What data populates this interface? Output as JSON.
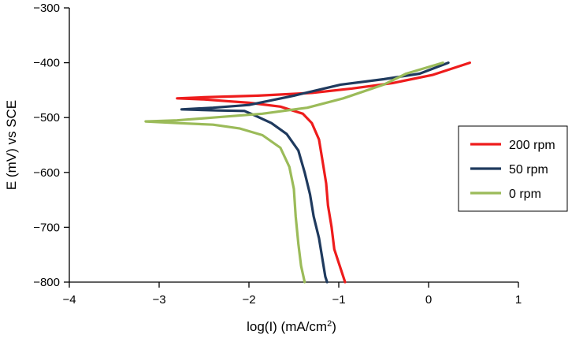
{
  "chart_data": {
    "type": "line",
    "title": "",
    "xlabel": "log(I) (mA/cm",
    "xlabel_sup": "2",
    "xlabel_suffix": ")",
    "ylabel": "E (mV) vs SCE",
    "xlim": [
      -4,
      1
    ],
    "ylim": [
      -800,
      -300
    ],
    "x_ticks": [
      -4,
      -3,
      -2,
      -1,
      0,
      1
    ],
    "x_tick_labels": [
      "−4",
      "−3",
      "−2",
      "−1",
      "0",
      "1"
    ],
    "y_ticks": [
      -800,
      -700,
      -600,
      -500,
      -400,
      -300
    ],
    "y_tick_labels": [
      "−800",
      "−700",
      "−600",
      "−500",
      "−400",
      "−300"
    ],
    "grid": false,
    "legend_position": "right",
    "series": [
      {
        "name": "200 rpm",
        "color": "#ee1c1c",
        "points": [
          [
            0.46,
            -400
          ],
          [
            0.05,
            -422
          ],
          [
            -0.4,
            -437
          ],
          [
            -0.85,
            -447
          ],
          [
            -1.3,
            -455
          ],
          [
            -1.9,
            -460
          ],
          [
            -2.5,
            -463
          ],
          [
            -2.8,
            -465
          ],
          [
            -2.5,
            -467
          ],
          [
            -2.0,
            -473
          ],
          [
            -1.65,
            -480
          ],
          [
            -1.4,
            -493
          ],
          [
            -1.3,
            -510
          ],
          [
            -1.22,
            -540
          ],
          [
            -1.18,
            -580
          ],
          [
            -1.14,
            -620
          ],
          [
            -1.12,
            -660
          ],
          [
            -1.08,
            -700
          ],
          [
            -1.05,
            -740
          ],
          [
            -0.98,
            -775
          ],
          [
            -0.93,
            -800
          ]
        ]
      },
      {
        "name": "50 rpm",
        "color": "#1f3a5e",
        "points": [
          [
            0.22,
            -400
          ],
          [
            -0.1,
            -420
          ],
          [
            -0.5,
            -430
          ],
          [
            -0.98,
            -440
          ],
          [
            -1.5,
            -460
          ],
          [
            -2.0,
            -477
          ],
          [
            -2.4,
            -482
          ],
          [
            -2.75,
            -485
          ],
          [
            -2.35,
            -487
          ],
          [
            -2.05,
            -488
          ],
          [
            -1.95,
            -495
          ],
          [
            -1.75,
            -510
          ],
          [
            -1.58,
            -530
          ],
          [
            -1.45,
            -560
          ],
          [
            -1.38,
            -600
          ],
          [
            -1.32,
            -640
          ],
          [
            -1.28,
            -680
          ],
          [
            -1.22,
            -720
          ],
          [
            -1.18,
            -760
          ],
          [
            -1.15,
            -790
          ],
          [
            -1.13,
            -800
          ]
        ]
      },
      {
        "name": "0 rpm",
        "color": "#9bbb59",
        "points": [
          [
            0.16,
            -400
          ],
          [
            -0.25,
            -420
          ],
          [
            -0.5,
            -440
          ],
          [
            -0.95,
            -465
          ],
          [
            -1.35,
            -482
          ],
          [
            -1.85,
            -493
          ],
          [
            -2.4,
            -500
          ],
          [
            -2.8,
            -505
          ],
          [
            -3.15,
            -507
          ],
          [
            -2.8,
            -510
          ],
          [
            -2.4,
            -513
          ],
          [
            -2.1,
            -520
          ],
          [
            -1.85,
            -532
          ],
          [
            -1.65,
            -555
          ],
          [
            -1.55,
            -590
          ],
          [
            -1.5,
            -630
          ],
          [
            -1.48,
            -680
          ],
          [
            -1.45,
            -730
          ],
          [
            -1.42,
            -770
          ],
          [
            -1.38,
            -800
          ]
        ]
      }
    ]
  }
}
